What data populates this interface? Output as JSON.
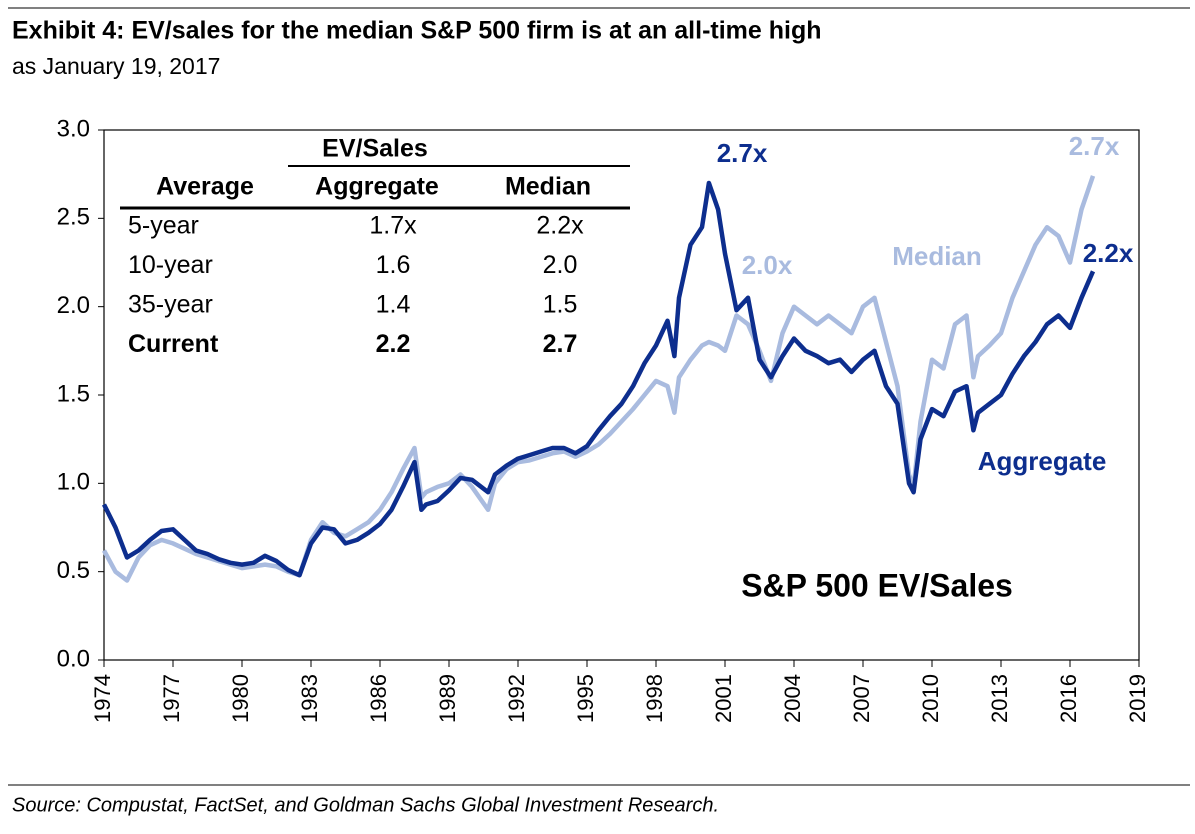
{
  "chart_data": {
    "type": "line",
    "title": "Exhibit 4: EV/sales for the median S&P 500 firm is at an all-time high",
    "subtitle": "as January 19, 2017",
    "source": "Source: Compustat, FactSet, and Goldman Sachs Global Investment Research.",
    "x": [
      1974,
      1974.5,
      1975,
      1975.5,
      1976,
      1976.5,
      1977,
      1977.5,
      1978,
      1978.5,
      1979,
      1979.5,
      1980,
      1980.5,
      1981,
      1981.5,
      1982,
      1982.5,
      1983,
      1983.5,
      1984,
      1984.5,
      1985,
      1985.5,
      1986,
      1986.5,
      1987,
      1987.5,
      1987.8,
      1988,
      1988.5,
      1989,
      1989.5,
      1990,
      1990.7,
      1991,
      1991.5,
      1992,
      1992.5,
      1993,
      1993.5,
      1994,
      1994.5,
      1995,
      1995.5,
      1996,
      1996.5,
      1997,
      1997.5,
      1998,
      1998.5,
      1998.8,
      1999,
      1999.5,
      2000,
      2000.3,
      2000.7,
      2001,
      2001.5,
      2002,
      2002.5,
      2003,
      2003.5,
      2004,
      2004.5,
      2005,
      2005.5,
      2006,
      2006.5,
      2007,
      2007.5,
      2008,
      2008.5,
      2009,
      2009.2,
      2009.5,
      2010,
      2010.5,
      2011,
      2011.5,
      2011.8,
      2012,
      2012.5,
      2013,
      2013.5,
      2014,
      2014.5,
      2015,
      2015.5,
      2016,
      2016.5,
      2017
    ],
    "series": [
      {
        "name": "Aggregate",
        "color": "#0d2e8e",
        "values": [
          0.88,
          0.75,
          0.58,
          0.62,
          0.68,
          0.73,
          0.74,
          0.68,
          0.62,
          0.6,
          0.57,
          0.55,
          0.54,
          0.55,
          0.59,
          0.56,
          0.51,
          0.48,
          0.66,
          0.75,
          0.74,
          0.66,
          0.68,
          0.72,
          0.77,
          0.85,
          0.98,
          1.12,
          0.85,
          0.88,
          0.9,
          0.96,
          1.03,
          1.02,
          0.95,
          1.05,
          1.1,
          1.14,
          1.16,
          1.18,
          1.2,
          1.2,
          1.17,
          1.21,
          1.3,
          1.38,
          1.45,
          1.55,
          1.68,
          1.78,
          1.92,
          1.72,
          2.05,
          2.35,
          2.45,
          2.7,
          2.55,
          2.3,
          1.98,
          2.05,
          1.7,
          1.6,
          1.72,
          1.82,
          1.75,
          1.72,
          1.68,
          1.7,
          1.63,
          1.7,
          1.75,
          1.55,
          1.45,
          1.0,
          0.95,
          1.25,
          1.42,
          1.38,
          1.52,
          1.55,
          1.3,
          1.4,
          1.45,
          1.5,
          1.62,
          1.72,
          1.8,
          1.9,
          1.95,
          1.88,
          2.05,
          2.2
        ]
      },
      {
        "name": "Median",
        "color": "#a9bbdf",
        "values": [
          0.62,
          0.5,
          0.45,
          0.58,
          0.65,
          0.68,
          0.66,
          0.63,
          0.6,
          0.58,
          0.56,
          0.54,
          0.52,
          0.53,
          0.54,
          0.53,
          0.5,
          0.48,
          0.68,
          0.78,
          0.72,
          0.7,
          0.74,
          0.78,
          0.85,
          0.95,
          1.08,
          1.2,
          0.92,
          0.95,
          0.98,
          1.0,
          1.05,
          0.98,
          0.85,
          1.0,
          1.08,
          1.12,
          1.13,
          1.15,
          1.17,
          1.18,
          1.15,
          1.18,
          1.22,
          1.28,
          1.35,
          1.42,
          1.5,
          1.58,
          1.55,
          1.4,
          1.6,
          1.7,
          1.78,
          1.8,
          1.78,
          1.75,
          1.95,
          1.9,
          1.75,
          1.58,
          1.85,
          2.0,
          1.95,
          1.9,
          1.95,
          1.9,
          1.85,
          2.0,
          2.05,
          1.8,
          1.55,
          1.05,
          0.98,
          1.35,
          1.7,
          1.65,
          1.9,
          1.95,
          1.6,
          1.72,
          1.78,
          1.85,
          2.05,
          2.2,
          2.35,
          2.45,
          2.4,
          2.25,
          2.55,
          2.74
        ]
      }
    ],
    "xlim": [
      1974,
      2019
    ],
    "xticks": [
      1974,
      1977,
      1980,
      1983,
      1986,
      1989,
      1992,
      1995,
      1998,
      2001,
      2004,
      2007,
      2010,
      2013,
      2016,
      2019
    ],
    "ylim": [
      0,
      3
    ],
    "yticks": [
      {
        "value": 0,
        "label": "0.0"
      },
      0.5,
      {
        "value": 1,
        "label": "1.0"
      },
      1.5,
      {
        "value": 2,
        "label": "2.0"
      },
      2.5,
      {
        "value": 3,
        "label": "3.0"
      }
    ],
    "grid": false,
    "annotations": [
      "2.7x",
      "2.0x",
      "Median",
      "2.7x",
      "2.2x",
      "Aggregate",
      "S&P 500 EV/Sales"
    ]
  },
  "table": {
    "group_header": "EV/Sales",
    "columns": [
      "Average",
      "Aggregate",
      "Median"
    ],
    "rows": [
      [
        "5-year",
        "1.7x",
        "2.2x"
      ],
      [
        "10-year",
        "1.6",
        "2.0"
      ],
      [
        "35-year",
        "1.4",
        "1.5"
      ],
      [
        "Current",
        "2.2",
        "2.7"
      ]
    ]
  }
}
